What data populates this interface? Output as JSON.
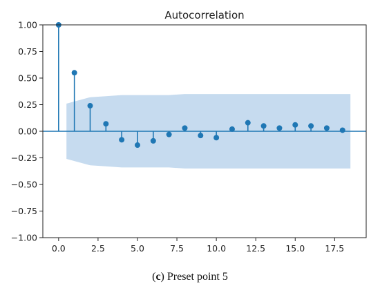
{
  "chart_data": {
    "type": "stem",
    "title": "Autocorrelation",
    "xlabel": "",
    "ylabel": "",
    "xlim": [
      -1,
      19.5
    ],
    "ylim": [
      -1.0,
      1.0
    ],
    "x_ticks": [
      0.0,
      2.5,
      5.0,
      7.5,
      10.0,
      12.5,
      15.0,
      17.5
    ],
    "x_tick_labels": [
      "0.0",
      "2.5",
      "5.0",
      "7.5",
      "10.0",
      "12.5",
      "15.0",
      "17.5"
    ],
    "y_ticks": [
      1.0,
      0.75,
      0.5,
      0.25,
      0.0,
      -0.25,
      -0.5,
      -0.75,
      -1.0
    ],
    "y_tick_labels": [
      "1.00",
      "0.75",
      "0.50",
      "0.25",
      "0.00",
      "−0.25",
      "−0.50",
      "−0.75",
      "−1.00"
    ],
    "lags": [
      0,
      1,
      2,
      3,
      4,
      5,
      6,
      7,
      8,
      9,
      10,
      11,
      12,
      13,
      14,
      15,
      16,
      17,
      18
    ],
    "values": [
      1.0,
      0.55,
      0.24,
      0.07,
      -0.08,
      -0.13,
      -0.09,
      -0.03,
      0.03,
      -0.04,
      -0.06,
      0.02,
      0.08,
      0.05,
      0.03,
      0.06,
      0.05,
      0.03,
      0.01
    ],
    "confidence_band": {
      "x": [
        0.5,
        1,
        2,
        3,
        4,
        5,
        6,
        7,
        8,
        9,
        10,
        11,
        12,
        13,
        14,
        15,
        16,
        17,
        18,
        18.5
      ],
      "upper": [
        0.26,
        0.28,
        0.32,
        0.33,
        0.34,
        0.34,
        0.34,
        0.34,
        0.35,
        0.35,
        0.35,
        0.35,
        0.35,
        0.35,
        0.35,
        0.35,
        0.35,
        0.35,
        0.35,
        0.35
      ],
      "lower": [
        -0.26,
        -0.28,
        -0.32,
        -0.33,
        -0.34,
        -0.34,
        -0.34,
        -0.34,
        -0.35,
        -0.35,
        -0.35,
        -0.35,
        -0.35,
        -0.35,
        -0.35,
        -0.35,
        -0.35,
        -0.35,
        -0.35,
        -0.35
      ]
    },
    "colors": {
      "stem": "#1f77b4",
      "band": "#c6dbef",
      "axis": "#222222"
    },
    "grid": false
  },
  "caption": {
    "open": "(",
    "letter": "c",
    "close": ")",
    "text": " Preset point 5"
  }
}
